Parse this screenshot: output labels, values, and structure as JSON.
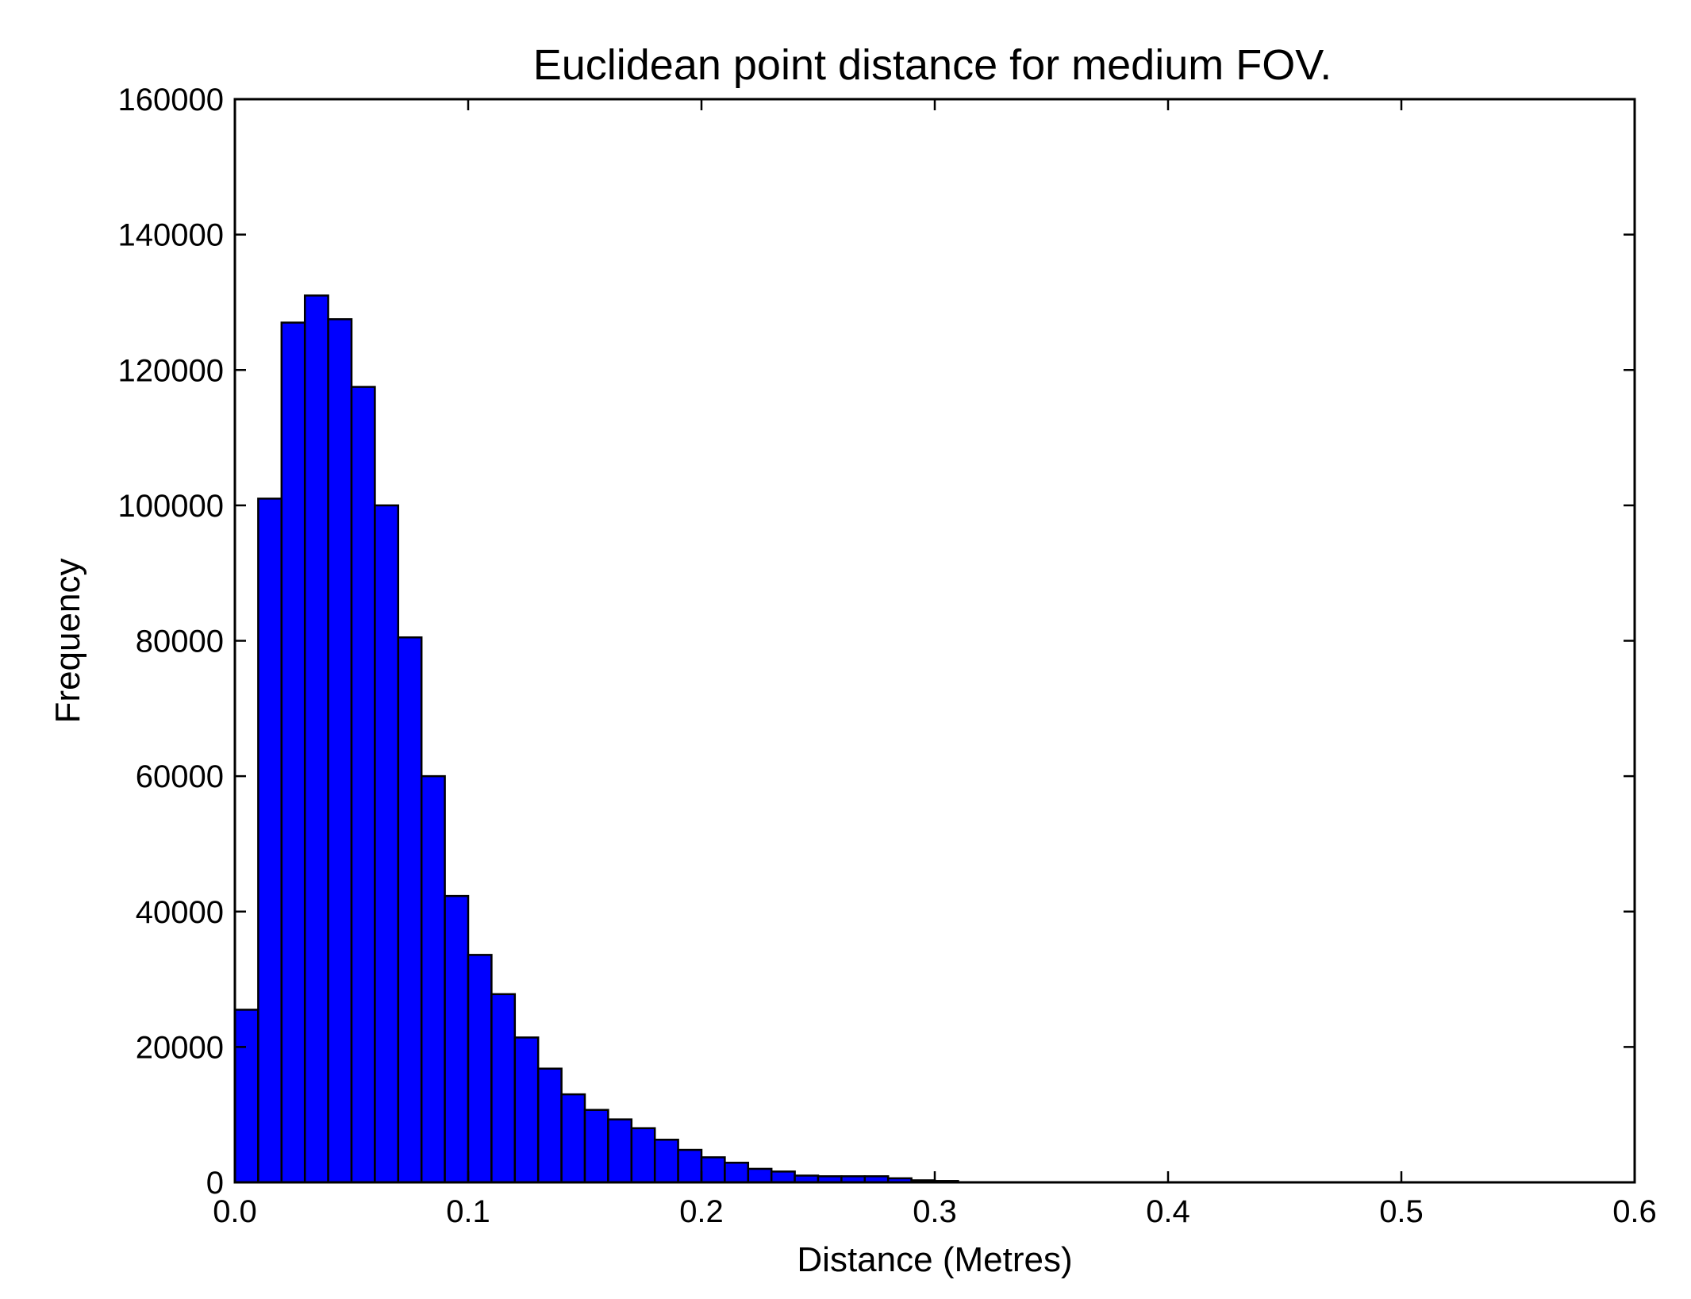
{
  "chart_data": {
    "type": "bar",
    "title": "Euclidean point distance for medium FOV.",
    "xlabel": "Distance (Metres)",
    "ylabel": "Frequency",
    "xlim": [
      0.0,
      0.6
    ],
    "ylim": [
      0,
      160000
    ],
    "x_ticks": [
      "0.0",
      "0.1",
      "0.2",
      "0.3",
      "0.4",
      "0.5",
      "0.6"
    ],
    "y_ticks": [
      "0",
      "20000",
      "40000",
      "60000",
      "80000",
      "100000",
      "120000",
      "140000",
      "160000"
    ],
    "grid": false,
    "legend": "none",
    "bar_color": "#0000ff",
    "edge_color": "#000000",
    "bins": [
      {
        "start": 0.0,
        "end": 0.01,
        "value": 25500
      },
      {
        "start": 0.01,
        "end": 0.02,
        "value": 101000
      },
      {
        "start": 0.02,
        "end": 0.03,
        "value": 127000
      },
      {
        "start": 0.03,
        "end": 0.04,
        "value": 131000
      },
      {
        "start": 0.04,
        "end": 0.05,
        "value": 127500
      },
      {
        "start": 0.05,
        "end": 0.06,
        "value": 117500
      },
      {
        "start": 0.06,
        "end": 0.07,
        "value": 100000
      },
      {
        "start": 0.07,
        "end": 0.08,
        "value": 80500
      },
      {
        "start": 0.08,
        "end": 0.09,
        "value": 60000
      },
      {
        "start": 0.09,
        "end": 0.1,
        "value": 42300
      },
      {
        "start": 0.1,
        "end": 0.11,
        "value": 33600
      },
      {
        "start": 0.11,
        "end": 0.12,
        "value": 27800
      },
      {
        "start": 0.12,
        "end": 0.13,
        "value": 21400
      },
      {
        "start": 0.13,
        "end": 0.14,
        "value": 16800
      },
      {
        "start": 0.14,
        "end": 0.15,
        "value": 13000
      },
      {
        "start": 0.15,
        "end": 0.16,
        "value": 10700
      },
      {
        "start": 0.16,
        "end": 0.17,
        "value": 9300
      },
      {
        "start": 0.17,
        "end": 0.18,
        "value": 8000
      },
      {
        "start": 0.18,
        "end": 0.19,
        "value": 6300
      },
      {
        "start": 0.19,
        "end": 0.2,
        "value": 4800
      },
      {
        "start": 0.2,
        "end": 0.21,
        "value": 3700
      },
      {
        "start": 0.21,
        "end": 0.22,
        "value": 2900
      },
      {
        "start": 0.22,
        "end": 0.23,
        "value": 2000
      },
      {
        "start": 0.23,
        "end": 0.24,
        "value": 1600
      },
      {
        "start": 0.24,
        "end": 0.25,
        "value": 1000
      },
      {
        "start": 0.25,
        "end": 0.26,
        "value": 900
      },
      {
        "start": 0.26,
        "end": 0.27,
        "value": 900
      },
      {
        "start": 0.27,
        "end": 0.28,
        "value": 900
      },
      {
        "start": 0.28,
        "end": 0.29,
        "value": 600
      },
      {
        "start": 0.29,
        "end": 0.3,
        "value": 300
      },
      {
        "start": 0.3,
        "end": 0.31,
        "value": 200
      }
    ]
  }
}
